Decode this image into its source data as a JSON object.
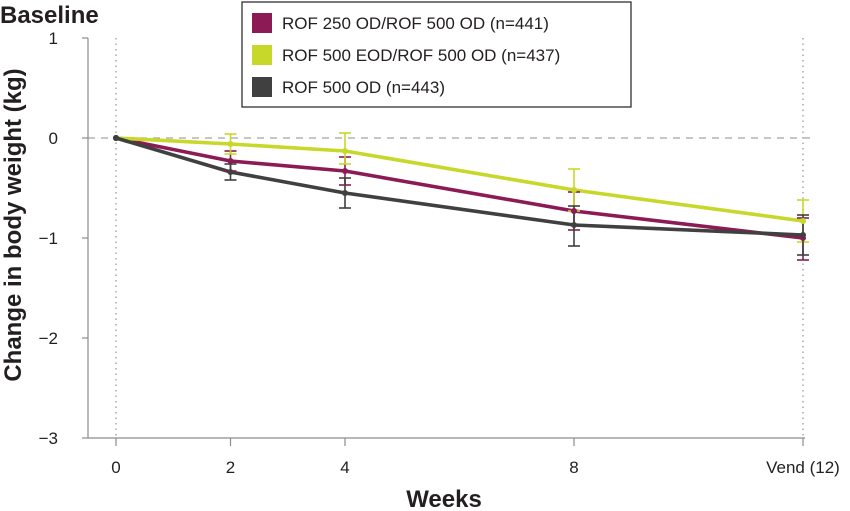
{
  "chart_data": {
    "type": "line",
    "title": "",
    "ylabel": "Change in body weight (kg)",
    "xlabel": "Weeks",
    "baseline_label": "Baseline",
    "ylim": [
      -3,
      1
    ],
    "yticks": [
      1,
      0,
      -1,
      -2,
      -3
    ],
    "ytick_labels": [
      "1",
      "0",
      "−1",
      "−2",
      "−3"
    ],
    "x": [
      0,
      2,
      4,
      8,
      12
    ],
    "xtick_labels": [
      "0",
      "2",
      "4",
      "8",
      "Vend (12)"
    ],
    "grid": false,
    "reference_line_y": 0,
    "legend_position": "top-right",
    "series": [
      {
        "name": "ROF 250 OD/ROF 500 OD (n=441)",
        "color": "#8b1a55",
        "values": [
          0,
          -0.23,
          -0.33,
          -0.73,
          -1.0
        ],
        "error_low": [
          0,
          -0.33,
          -0.47,
          -0.92,
          -1.22
        ],
        "error_high": [
          0,
          -0.13,
          -0.19,
          -0.54,
          -0.8
        ]
      },
      {
        "name": "ROF 500 EOD/ROF 500 OD (n=437)",
        "color": "#c7d82a",
        "values": [
          0,
          -0.06,
          -0.13,
          -0.52,
          -0.83
        ],
        "error_low": [
          0,
          -0.16,
          -0.26,
          -0.73,
          -1.04
        ],
        "error_high": [
          0,
          0.04,
          0.05,
          -0.31,
          -0.62
        ]
      },
      {
        "name": "ROF 500 OD (n=443)",
        "color": "#404041",
        "values": [
          0,
          -0.34,
          -0.55,
          -0.87,
          -0.97
        ],
        "error_low": [
          0,
          -0.42,
          -0.7,
          -1.08,
          -1.17
        ],
        "error_high": [
          0,
          -0.26,
          -0.4,
          -0.68,
          -0.77
        ]
      }
    ]
  }
}
